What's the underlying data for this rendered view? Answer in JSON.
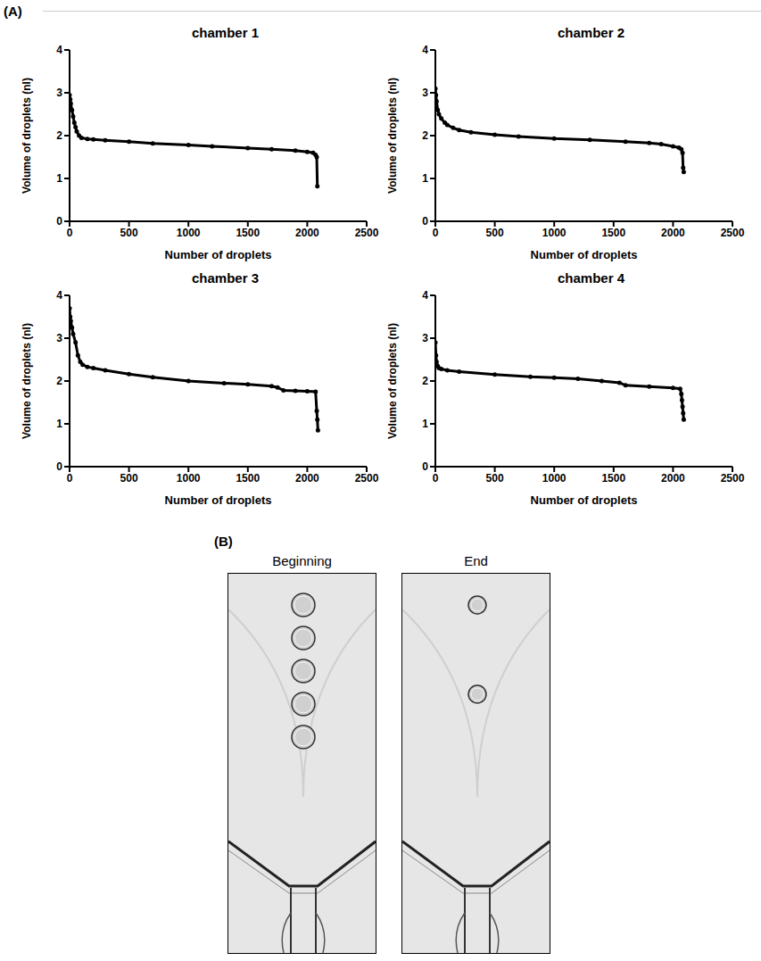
{
  "panel_a_label": "(A)",
  "chart_data": [
    {
      "type": "scatter",
      "title": "chamber 1",
      "x_label": "Number of droplets",
      "y_label": "Volume of droplets (nl)",
      "color": "#000000",
      "marker": "circle",
      "line_style": "solid",
      "x": [
        0,
        5,
        10,
        20,
        30,
        40,
        50,
        60,
        80,
        100,
        150,
        200,
        300,
        500,
        700,
        1000,
        1200,
        1500,
        1700,
        1900,
        2000,
        2050,
        2070,
        2080,
        2085
      ],
      "values": [
        2.95,
        2.85,
        2.75,
        2.6,
        2.45,
        2.3,
        2.2,
        2.1,
        2.0,
        1.95,
        1.92,
        1.91,
        1.89,
        1.86,
        1.82,
        1.78,
        1.75,
        1.71,
        1.68,
        1.65,
        1.62,
        1.6,
        1.55,
        1.5,
        0.82
      ],
      "xlim": [
        0,
        2500
      ],
      "xticks": [
        0,
        500,
        1000,
        1500,
        2000,
        2500
      ],
      "ylim": [
        0,
        4
      ],
      "yticks": [
        0,
        1,
        2,
        3,
        4
      ]
    },
    {
      "type": "scatter",
      "title": "chamber 2",
      "x_label": "Number of droplets",
      "y_label": "Volume of droplets (nl)",
      "color": "#000000",
      "marker": "circle",
      "line_style": "solid",
      "x": [
        0,
        5,
        10,
        20,
        30,
        50,
        80,
        100,
        150,
        200,
        300,
        500,
        700,
        1000,
        1300,
        1600,
        1800,
        1900,
        2000,
        2050,
        2070,
        2080,
        2085,
        2090
      ],
      "values": [
        3.1,
        2.95,
        2.8,
        2.6,
        2.5,
        2.4,
        2.3,
        2.25,
        2.18,
        2.13,
        2.08,
        2.02,
        1.98,
        1.93,
        1.9,
        1.86,
        1.83,
        1.8,
        1.75,
        1.72,
        1.68,
        1.6,
        1.25,
        1.15
      ],
      "xlim": [
        0,
        2500
      ],
      "xticks": [
        0,
        500,
        1000,
        1500,
        2000,
        2500
      ],
      "ylim": [
        0,
        4
      ],
      "yticks": [
        0,
        1,
        2,
        3,
        4
      ]
    },
    {
      "type": "scatter",
      "title": "chamber 3",
      "x_label": "Number of droplets",
      "y_label": "Volume of droplets (nl)",
      "color": "#000000",
      "marker": "circle",
      "line_style": "solid",
      "x": [
        0,
        5,
        10,
        20,
        30,
        50,
        70,
        90,
        110,
        150,
        200,
        300,
        500,
        700,
        1000,
        1300,
        1500,
        1700,
        1750,
        1800,
        1900,
        2000,
        2070,
        2080,
        2085,
        2090
      ],
      "values": [
        3.7,
        3.5,
        3.4,
        3.25,
        3.1,
        2.9,
        2.6,
        2.45,
        2.38,
        2.33,
        2.3,
        2.25,
        2.16,
        2.09,
        2.0,
        1.95,
        1.92,
        1.88,
        1.85,
        1.78,
        1.77,
        1.76,
        1.75,
        1.3,
        1.1,
        0.85
      ],
      "xlim": [
        0,
        2500
      ],
      "xticks": [
        0,
        500,
        1000,
        1500,
        2000,
        2500
      ],
      "ylim": [
        0,
        4
      ],
      "yticks": [
        0,
        1,
        2,
        3,
        4
      ]
    },
    {
      "type": "scatter",
      "title": "chamber 4",
      "x_label": "Number of droplets",
      "y_label": "Volume of droplets (nl)",
      "color": "#000000",
      "marker": "circle",
      "line_style": "solid",
      "x": [
        0,
        5,
        10,
        20,
        30,
        50,
        100,
        200,
        500,
        800,
        1000,
        1200,
        1400,
        1550,
        1600,
        1800,
        2000,
        2060,
        2070,
        2075,
        2080,
        2085,
        2090
      ],
      "values": [
        2.9,
        2.6,
        2.45,
        2.35,
        2.3,
        2.28,
        2.25,
        2.22,
        2.15,
        2.1,
        2.08,
        2.05,
        2.0,
        1.96,
        1.9,
        1.87,
        1.84,
        1.82,
        1.7,
        1.55,
        1.4,
        1.25,
        1.1
      ],
      "xlim": [
        0,
        2500
      ],
      "xticks": [
        0,
        500,
        1000,
        1500,
        2000,
        2500
      ],
      "ylim": [
        0,
        4
      ],
      "yticks": [
        0,
        1,
        2,
        3,
        4
      ]
    }
  ],
  "panel_b": {
    "label": "(B)",
    "images": [
      {
        "caption": "Beginning",
        "droplets": 5
      },
      {
        "caption": "End",
        "droplets": 2
      }
    ]
  }
}
